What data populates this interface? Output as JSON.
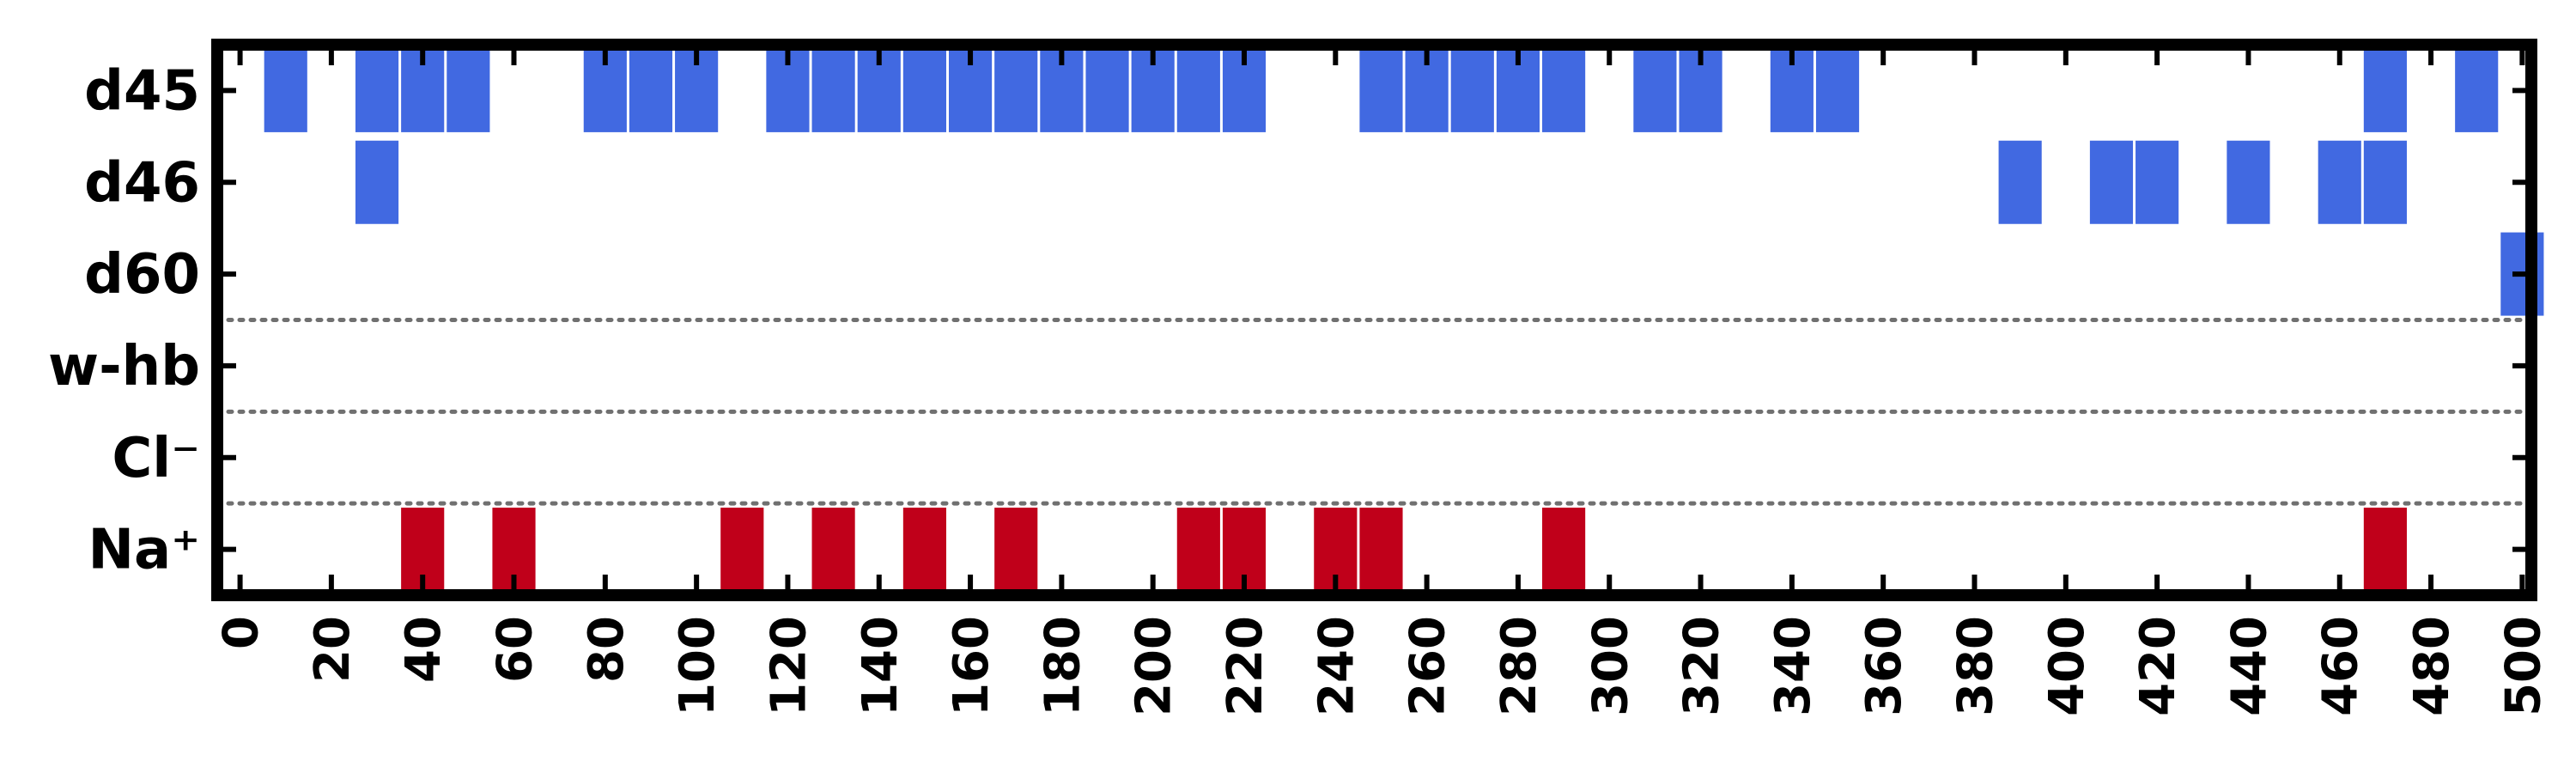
{
  "chart_data": {
    "type": "event-raster",
    "title": "",
    "xlabel": "",
    "ylabel": "",
    "xlim": [
      -5,
      502
    ],
    "x_ticks": [
      0,
      20,
      40,
      60,
      80,
      100,
      120,
      140,
      160,
      180,
      200,
      220,
      240,
      260,
      280,
      300,
      320,
      340,
      360,
      380,
      400,
      420,
      440,
      460,
      480,
      500
    ],
    "x_tick_labels": [
      "0",
      "20",
      "40",
      "60",
      "80",
      "100",
      "120",
      "140",
      "160",
      "180",
      "200",
      "220",
      "240",
      "260",
      "280",
      "300",
      "320",
      "340",
      "360",
      "380",
      "400",
      "420",
      "440",
      "460",
      "480",
      "500"
    ],
    "bin_width": 10,
    "rows": [
      {
        "label": "d45",
        "color": "#4169e1",
        "x": [
          10,
          30,
          40,
          50,
          80,
          90,
          100,
          120,
          130,
          140,
          150,
          160,
          170,
          180,
          190,
          200,
          210,
          220,
          250,
          260,
          270,
          280,
          290,
          310,
          320,
          340,
          350,
          470,
          490
        ]
      },
      {
        "label": "d46",
        "color": "#4169e1",
        "x": [
          30,
          390,
          410,
          420,
          440,
          460,
          470
        ]
      },
      {
        "label": "d60",
        "color": "#4169e1",
        "x": [
          500
        ]
      },
      {
        "label": "w-hb",
        "color": "#4169e1",
        "x": []
      },
      {
        "label": "Cl⁻",
        "color": "#c0001a",
        "x": []
      },
      {
        "label": "Na⁺",
        "color": "#c0001a",
        "x": [
          40,
          60,
          110,
          130,
          150,
          170,
          210,
          220,
          240,
          250,
          290,
          470
        ]
      }
    ],
    "separators_after_row": [
      2,
      3,
      4
    ],
    "separator_style": "dotted",
    "grid": false,
    "legend": "none"
  }
}
